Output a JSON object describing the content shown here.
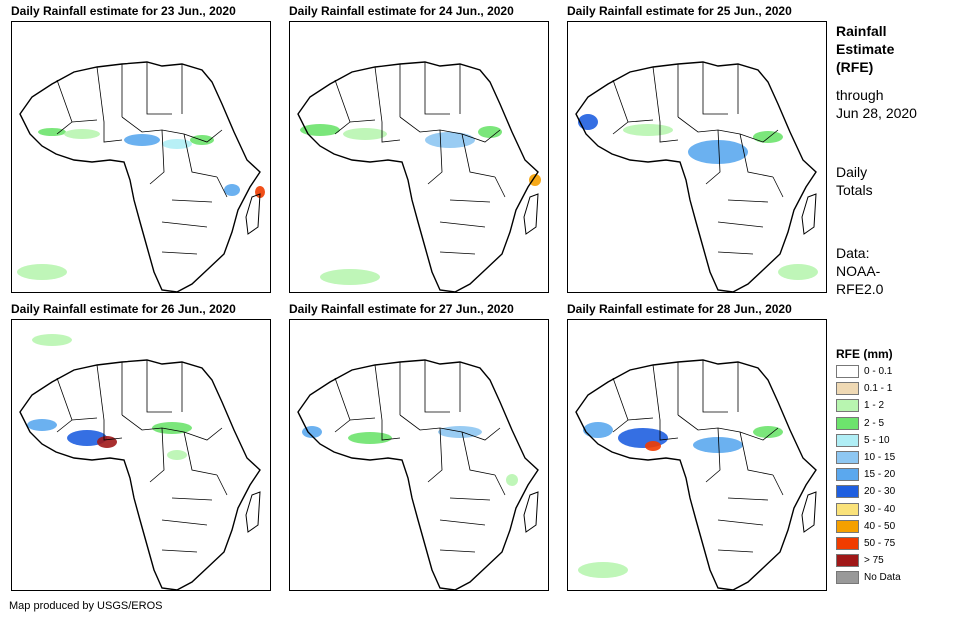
{
  "panels": [
    {
      "title": "Daily Rainfall estimate for 23 Jun., 2020"
    },
    {
      "title": "Daily Rainfall estimate for 24 Jun., 2020"
    },
    {
      "title": "Daily Rainfall estimate for 25 Jun., 2020"
    },
    {
      "title": "Daily Rainfall estimate for 26 Jun., 2020"
    },
    {
      "title": "Daily Rainfall estimate for 27 Jun., 2020"
    },
    {
      "title": "Daily Rainfall estimate for 28 Jun., 2020"
    }
  ],
  "side": {
    "title_line1": "Rainfall",
    "title_line2": "Estimate",
    "title_line3": "(RFE)",
    "through_line1": "through",
    "through_line2": "Jun 28, 2020",
    "daily_line1": "Daily",
    "daily_line2": "Totals",
    "data_line1": "Data:",
    "data_line2": "NOAA-",
    "data_line3": "RFE2.0"
  },
  "legend": {
    "title": "RFE (mm)",
    "items": [
      {
        "label": "0 - 0.1",
        "color": "#ffffff"
      },
      {
        "label": "0.1 - 1",
        "color": "#efd9b4"
      },
      {
        "label": "1 - 2",
        "color": "#b8f5b0"
      },
      {
        "label": "2 - 5",
        "color": "#6de36d"
      },
      {
        "label": "5 - 10",
        "color": "#b0eef5"
      },
      {
        "label": "10 - 15",
        "color": "#8ec7f2"
      },
      {
        "label": "15 - 20",
        "color": "#5ba8ee"
      },
      {
        "label": "20 - 30",
        "color": "#1f5fe0"
      },
      {
        "label": "30 - 40",
        "color": "#fae27a"
      },
      {
        "label": "40 - 50",
        "color": "#f5a000"
      },
      {
        "label": "50 - 75",
        "color": "#f03c00"
      },
      {
        "label": "> 75",
        "color": "#a01818"
      },
      {
        "label": "No Data",
        "color": "#999999"
      }
    ]
  },
  "footer": "Map produced by USGS/EROS"
}
